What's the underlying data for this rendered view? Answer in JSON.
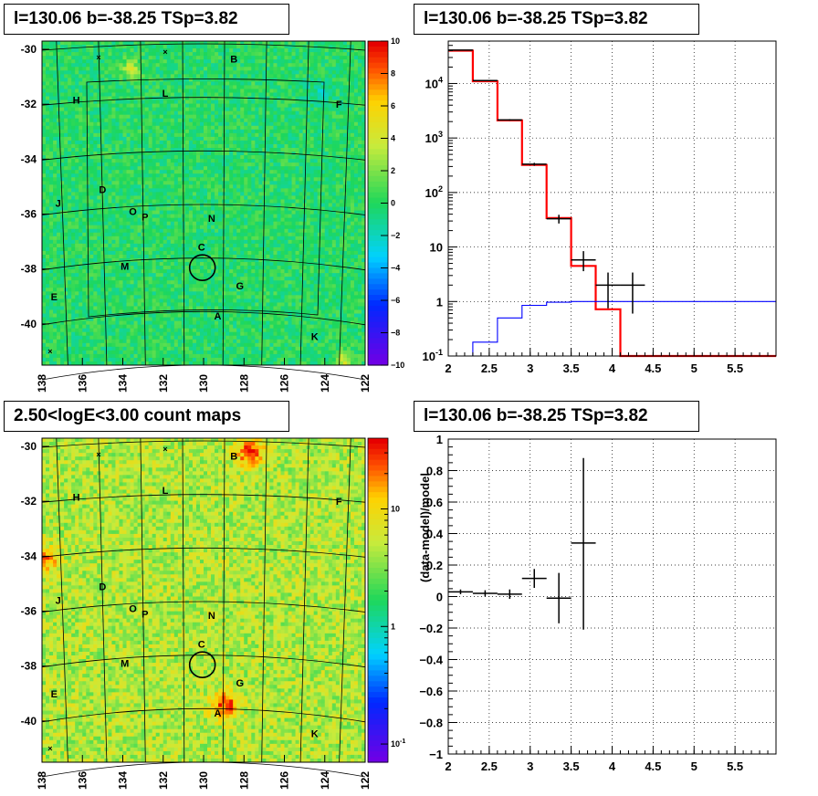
{
  "panels": {
    "tl_title": "l=130.06 b=-38.25 TSp=3.82",
    "tr_title": "l=130.06 b=-38.25 TSp=3.82",
    "bl_title": "2.50<logE<3.00 count maps",
    "br_title": "l=130.06 b=-38.25 TSp=3.82"
  },
  "sky_maps": {
    "x_ticks": [
      "138",
      "136",
      "134",
      "132",
      "130",
      "128",
      "126",
      "124",
      "122"
    ],
    "y_ticks": [
      "-30",
      "-32",
      "-34",
      "-36",
      "-38",
      "-40"
    ],
    "source_labels": [
      {
        "id": "B",
        "lon": 128.5,
        "lat": -30.35
      },
      {
        "id": "L",
        "lon": 131.9,
        "lat": -31.6
      },
      {
        "id": "H",
        "lon": 136.3,
        "lat": -31.85
      },
      {
        "id": "F",
        "lon": 123.3,
        "lat": -32.0
      },
      {
        "id": "D",
        "lon": 135.0,
        "lat": -35.1
      },
      {
        "id": "J",
        "lon": 137.2,
        "lat": -35.6
      },
      {
        "id": "O",
        "lon": 133.5,
        "lat": -35.9
      },
      {
        "id": "P",
        "lon": 132.9,
        "lat": -36.1
      },
      {
        "id": "N",
        "lon": 129.6,
        "lat": -36.15
      },
      {
        "id": "C",
        "lon": 130.1,
        "lat": -37.2
      },
      {
        "id": "M",
        "lon": 133.9,
        "lat": -37.9
      },
      {
        "id": "G",
        "lon": 128.2,
        "lat": -38.6
      },
      {
        "id": "E",
        "lon": 137.4,
        "lat": -39.0
      },
      {
        "id": "A",
        "lon": 129.3,
        "lat": -39.7
      },
      {
        "id": "K",
        "lon": 124.5,
        "lat": -40.45
      }
    ],
    "circle": {
      "lon": 130.06,
      "lat": -37.95,
      "label": ""
    },
    "crosses": [
      {
        "lon": 135.2,
        "lat": -30.3
      },
      {
        "lon": 131.9,
        "lat": -30.1
      },
      {
        "lon": 137.6,
        "lat": -41.0
      }
    ]
  },
  "tl_colorbar": {
    "ticks": [
      "10",
      "8",
      "6",
      "4",
      "2",
      "0",
      "−2",
      "−4",
      "−6",
      "−8",
      "−10"
    ],
    "range": [
      -10,
      10
    ]
  },
  "bl_colorbar": {
    "tick10": "10",
    "tick1": "1",
    "tick01_base": "10",
    "tick01_exp": "-1",
    "log_range": [
      0.07,
      40
    ]
  },
  "chart_data": [
    {
      "type": "line",
      "title": "l=130.06 b=-38.25 TSp=3.82",
      "xlabel": "",
      "ylabel": "",
      "xlim": [
        2,
        6
      ],
      "ylim": [
        0.1,
        60000
      ],
      "y_scale": "log",
      "grid": true,
      "x_ticks": [
        "2",
        "2.5",
        "3",
        "3.5",
        "4",
        "4.5",
        "5",
        "5.5"
      ],
      "y_ticks": [
        {
          "base": "10",
          "exp": "-1",
          "value": 0.1
        },
        {
          "base": "1",
          "exp": "",
          "value": 1
        },
        {
          "base": "10",
          "exp": "",
          "value": 10
        },
        {
          "base": "10",
          "exp": "2",
          "value": 100
        },
        {
          "base": "10",
          "exp": "3",
          "value": 1000
        },
        {
          "base": "10",
          "exp": "4",
          "value": 10000
        }
      ],
      "bin_edges": [
        2.0,
        2.3,
        2.6,
        2.9,
        3.2,
        3.5,
        3.8,
        4.1,
        4.4,
        6.0
      ],
      "series": [
        {
          "name": "",
          "color": "#ff0000",
          "kind": "step",
          "values": [
            40000,
            11000,
            2100,
            320,
            34,
            4.5,
            0.72,
            0.1,
            0.1
          ]
        },
        {
          "name": "",
          "color": "#0000ff",
          "kind": "step",
          "values": [
            0.1,
            0.18,
            0.5,
            0.85,
            0.97,
            1.0,
            1.0,
            1.0,
            1.0
          ]
        },
        {
          "name": "",
          "color": "#000000",
          "kind": "errorbar",
          "points": [
            {
              "x": 2.15,
              "xerr": 0.15,
              "y": 41000,
              "ylo": 40500,
              "yhi": 41500
            },
            {
              "x": 2.45,
              "xerr": 0.15,
              "y": 11300,
              "ylo": 11100,
              "yhi": 11500
            },
            {
              "x": 2.75,
              "xerr": 0.15,
              "y": 2150,
              "ylo": 2080,
              "yhi": 2220
            },
            {
              "x": 3.05,
              "xerr": 0.15,
              "y": 330,
              "ylo": 310,
              "yhi": 350
            },
            {
              "x": 3.35,
              "xerr": 0.15,
              "y": 33,
              "ylo": 27,
              "yhi": 39
            },
            {
              "x": 3.65,
              "xerr": 0.15,
              "y": 5.8,
              "ylo": 3.6,
              "yhi": 8.4
            },
            {
              "x": 3.95,
              "xerr": 0.15,
              "y": 2.0,
              "ylo": 0.75,
              "yhi": 3.4
            },
            {
              "x": 4.25,
              "xerr": 0.15,
              "y": 2.0,
              "ylo": 0.6,
              "yhi": 3.4
            }
          ]
        }
      ]
    },
    {
      "type": "scatter",
      "title": "l=130.06 b=-38.25 TSp=3.82",
      "xlabel": "",
      "ylabel": "(data-model)/model",
      "xlim": [
        2,
        6
      ],
      "ylim": [
        -1,
        1
      ],
      "grid": true,
      "x_ticks": [
        "2",
        "2.5",
        "3",
        "3.5",
        "4",
        "4.5",
        "5",
        "5.5"
      ],
      "y_ticks": [
        "1",
        "0.8",
        "0.6",
        "0.4",
        "0.2",
        "0",
        "−0.2",
        "−0.4",
        "−0.6",
        "−0.8",
        "−1"
      ],
      "y_tick_values": [
        1,
        0.8,
        0.6,
        0.4,
        0.2,
        0,
        -0.2,
        -0.4,
        -0.6,
        -0.8,
        -1
      ],
      "series": [
        {
          "name": "",
          "color": "#000000",
          "points": [
            {
              "x": 2.15,
              "xerr": 0.15,
              "y": 0.03,
              "yerr": 0.015
            },
            {
              "x": 2.45,
              "xerr": 0.15,
              "y": 0.02,
              "yerr": 0.02
            },
            {
              "x": 2.75,
              "xerr": 0.15,
              "y": 0.015,
              "yerr": 0.03
            },
            {
              "x": 3.05,
              "xerr": 0.15,
              "y": 0.115,
              "yerr": 0.06
            },
            {
              "x": 3.35,
              "xerr": 0.15,
              "y": -0.01,
              "yerr": 0.16
            },
            {
              "x": 3.65,
              "xerr": 0.15,
              "y": 0.34,
              "ylo": -0.21,
              "yhi": 0.88
            }
          ]
        }
      ]
    }
  ]
}
